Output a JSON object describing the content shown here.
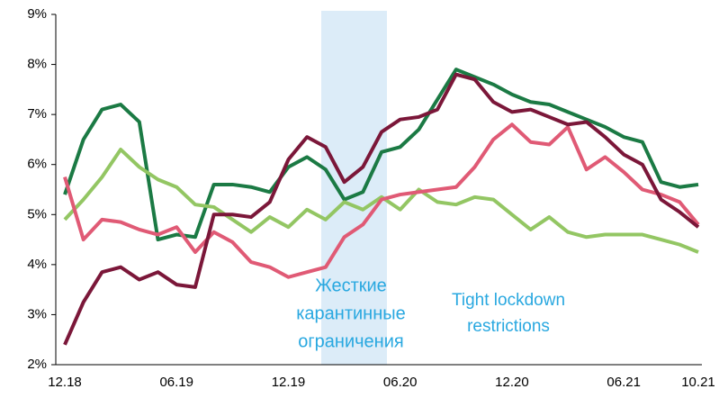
{
  "chart_data": {
    "type": "line",
    "categories": [
      "12.18",
      null,
      null,
      null,
      null,
      null,
      "06.19",
      null,
      null,
      null,
      null,
      null,
      "12.19",
      null,
      null,
      null,
      null,
      null,
      "06.20",
      null,
      null,
      null,
      null,
      null,
      "12.20",
      null,
      null,
      null,
      null,
      null,
      "06.21",
      null,
      null,
      null,
      "10.21"
    ],
    "series": [
      {
        "color": "#1b7a44",
        "values": [
          5.4,
          6.5,
          7.1,
          7.2,
          6.85,
          4.5,
          4.6,
          4.55,
          5.6,
          5.6,
          5.55,
          5.45,
          5.95,
          6.15,
          5.9,
          5.3,
          5.45,
          6.25,
          6.35,
          6.7,
          7.3,
          7.9,
          7.75,
          7.6,
          7.4,
          7.25,
          7.2,
          7.05,
          6.9,
          6.75,
          6.55,
          6.45,
          5.65,
          5.55,
          5.6
        ]
      },
      {
        "color": "#93c663",
        "values": [
          4.9,
          5.3,
          5.75,
          6.3,
          5.95,
          5.7,
          5.55,
          5.2,
          5.15,
          4.9,
          4.65,
          4.95,
          4.75,
          5.1,
          4.9,
          5.25,
          5.1,
          5.35,
          5.1,
          5.5,
          5.25,
          5.2,
          5.35,
          5.3,
          5.0,
          4.7,
          4.95,
          4.65,
          4.55,
          4.6,
          4.6,
          4.6,
          4.5,
          4.4,
          4.25
        ]
      },
      {
        "color": "#e05a75",
        "values": [
          5.75,
          4.5,
          4.9,
          4.85,
          4.7,
          4.6,
          4.75,
          4.25,
          4.65,
          4.45,
          4.05,
          3.95,
          3.75,
          3.85,
          3.95,
          4.55,
          4.8,
          5.3,
          5.4,
          5.45,
          5.5,
          5.55,
          5.95,
          6.5,
          6.8,
          6.45,
          6.4,
          6.75,
          5.9,
          6.15,
          5.85,
          5.5,
          5.4,
          5.25,
          4.8
        ]
      },
      {
        "color": "#7b1739",
        "values": [
          2.4,
          3.25,
          3.85,
          3.95,
          3.7,
          3.85,
          3.6,
          3.55,
          5.0,
          5.0,
          4.95,
          5.25,
          6.1,
          6.55,
          6.35,
          5.65,
          5.95,
          6.65,
          6.9,
          6.95,
          7.1,
          7.8,
          7.7,
          7.25,
          7.05,
          7.1,
          6.95,
          6.8,
          6.85,
          6.55,
          6.2,
          6.0,
          5.3,
          5.05,
          4.75
        ]
      }
    ],
    "ylim": [
      2,
      9
    ],
    "yticks": [
      {
        "value": 2,
        "label": "2%"
      },
      {
        "value": 3,
        "label": "3%"
      },
      {
        "value": 4,
        "label": "4%"
      },
      {
        "value": 5,
        "label": "5%"
      },
      {
        "value": 6,
        "label": "6%"
      },
      {
        "value": 7,
        "label": "7%"
      },
      {
        "value": 8,
        "label": "8%"
      },
      {
        "value": 9,
        "label": "9%"
      }
    ],
    "annotations": [
      [
        "Жесткие",
        "карантинные",
        "ограничения"
      ],
      [
        "Tight lockdown",
        "restrictions"
      ]
    ]
  }
}
